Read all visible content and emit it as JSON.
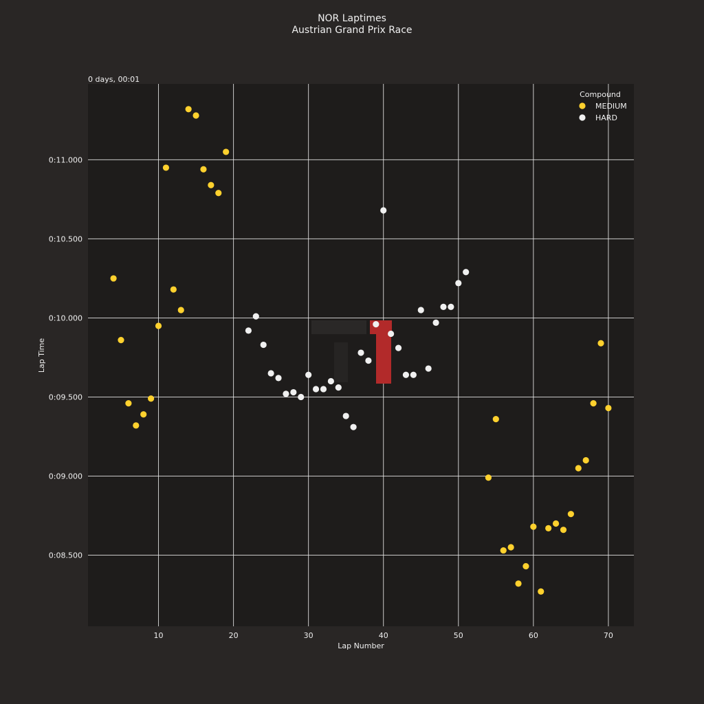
{
  "chart_data": {
    "type": "scatter",
    "title": "NOR Laptimes",
    "subtitle": "Austrian Grand Prix Race",
    "xlabel": "Lap Number",
    "ylabel": "Lap Time",
    "offset_label": "0 days, 00:01",
    "xlim": [
      0.6,
      73.4
    ],
    "ylim": [
      8.05,
      11.48
    ],
    "xticks": [
      10,
      20,
      30,
      40,
      50,
      60,
      70
    ],
    "yticks": [
      {
        "value": 8.5,
        "label": "0:08.500"
      },
      {
        "value": 9.0,
        "label": "0:09.000"
      },
      {
        "value": 9.5,
        "label": "0:09.500"
      },
      {
        "value": 10.0,
        "label": "0:10.000"
      },
      {
        "value": 10.5,
        "label": "0:10.500"
      },
      {
        "value": 11.0,
        "label": "0:11.000"
      }
    ],
    "grid": true,
    "legend": {
      "title": "Compound",
      "placement": "top-right"
    },
    "series": [
      {
        "name": "MEDIUM",
        "color": "#ffd12e",
        "points": [
          [
            4,
            10.25
          ],
          [
            5,
            9.86
          ],
          [
            6,
            9.46
          ],
          [
            7,
            9.32
          ],
          [
            8,
            9.39
          ],
          [
            9,
            9.49
          ],
          [
            10,
            9.95
          ],
          [
            11,
            10.95
          ],
          [
            12,
            10.18
          ],
          [
            13,
            10.05
          ],
          [
            14,
            11.32
          ],
          [
            15,
            11.28
          ],
          [
            16,
            10.94
          ],
          [
            17,
            10.84
          ],
          [
            18,
            10.79
          ],
          [
            19,
            11.05
          ],
          [
            54,
            8.99
          ],
          [
            55,
            9.36
          ],
          [
            56,
            8.53
          ],
          [
            57,
            8.55
          ],
          [
            58,
            8.32
          ],
          [
            59,
            8.43
          ],
          [
            60,
            8.68
          ],
          [
            61,
            8.27
          ],
          [
            62,
            8.67
          ],
          [
            63,
            8.7
          ],
          [
            64,
            8.66
          ],
          [
            65,
            8.76
          ],
          [
            66,
            9.05
          ],
          [
            67,
            9.1
          ],
          [
            68,
            9.46
          ],
          [
            69,
            9.84
          ],
          [
            70,
            9.43
          ]
        ]
      },
      {
        "name": "HARD",
        "color": "#f0f0f0",
        "points": [
          [
            22,
            9.92
          ],
          [
            23,
            10.01
          ],
          [
            24,
            9.83
          ],
          [
            25,
            9.65
          ],
          [
            26,
            9.62
          ],
          [
            27,
            9.52
          ],
          [
            28,
            9.53
          ],
          [
            29,
            9.5
          ],
          [
            30,
            9.64
          ],
          [
            31,
            9.55
          ],
          [
            32,
            9.55
          ],
          [
            33,
            9.6
          ],
          [
            34,
            9.56
          ],
          [
            35,
            9.38
          ],
          [
            36,
            9.31
          ],
          [
            37,
            9.78
          ],
          [
            38,
            9.73
          ],
          [
            39,
            9.96
          ],
          [
            40,
            10.68
          ],
          [
            41,
            9.9
          ],
          [
            42,
            9.81
          ],
          [
            43,
            9.64
          ],
          [
            44,
            9.64
          ],
          [
            45,
            10.05
          ],
          [
            46,
            9.68
          ],
          [
            47,
            9.97
          ],
          [
            48,
            10.07
          ],
          [
            49,
            10.07
          ],
          [
            50,
            10.22
          ],
          [
            51,
            10.29
          ]
        ]
      }
    ]
  }
}
